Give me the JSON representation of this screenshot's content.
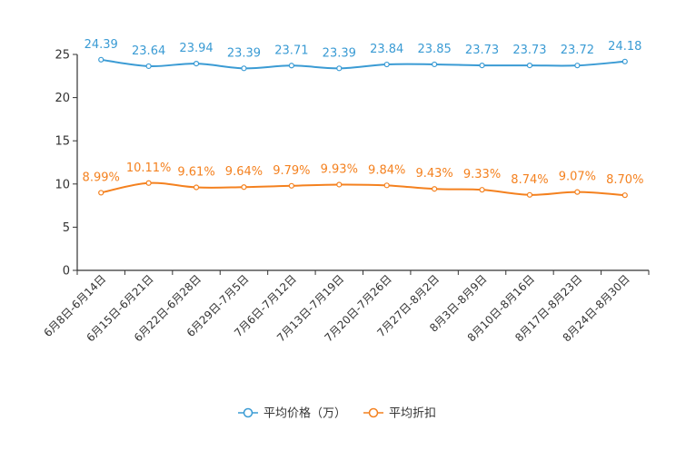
{
  "chart_data": {
    "type": "line",
    "categories": [
      "6月8日-6月14日",
      "6月15日-6月21日",
      "6月22日-6月28日",
      "6月29日-7月5日",
      "7月6日-7月12日",
      "7月13日-7月19日",
      "7月20日-7月26日",
      "7月27日-8月2日",
      "8月3日-8月9日",
      "8月10日-8月16日",
      "8月17日-8月23日",
      "8月24日-8月30日"
    ],
    "ylim": [
      0,
      25
    ],
    "yticks": [
      0,
      5,
      10,
      15,
      20,
      25
    ],
    "ytick_labels": [
      "0",
      "5",
      "10",
      "15",
      "20",
      "25"
    ],
    "series": [
      {
        "name": "平均价格（万）",
        "color": "#3a9bd4",
        "values": [
          24.39,
          23.64,
          23.94,
          23.39,
          23.71,
          23.39,
          23.84,
          23.85,
          23.73,
          23.73,
          23.72,
          24.18
        ],
        "labels": [
          "24.39",
          "23.64",
          "23.94",
          "23.39",
          "23.71",
          "23.39",
          "23.84",
          "23.85",
          "23.73",
          "23.73",
          "23.72",
          "24.18"
        ]
      },
      {
        "name": "平均折扣",
        "color": "#f4811f",
        "values": [
          8.99,
          10.11,
          9.61,
          9.64,
          9.79,
          9.93,
          9.84,
          9.43,
          9.33,
          8.74,
          9.07,
          8.7
        ],
        "labels": [
          "8.99%",
          "10.11%",
          "9.61%",
          "9.64%",
          "9.79%",
          "9.93%",
          "9.84%",
          "9.43%",
          "9.33%",
          "8.74%",
          "9.07%",
          "8.70%"
        ]
      }
    ],
    "legend_position": "bottom-center"
  }
}
